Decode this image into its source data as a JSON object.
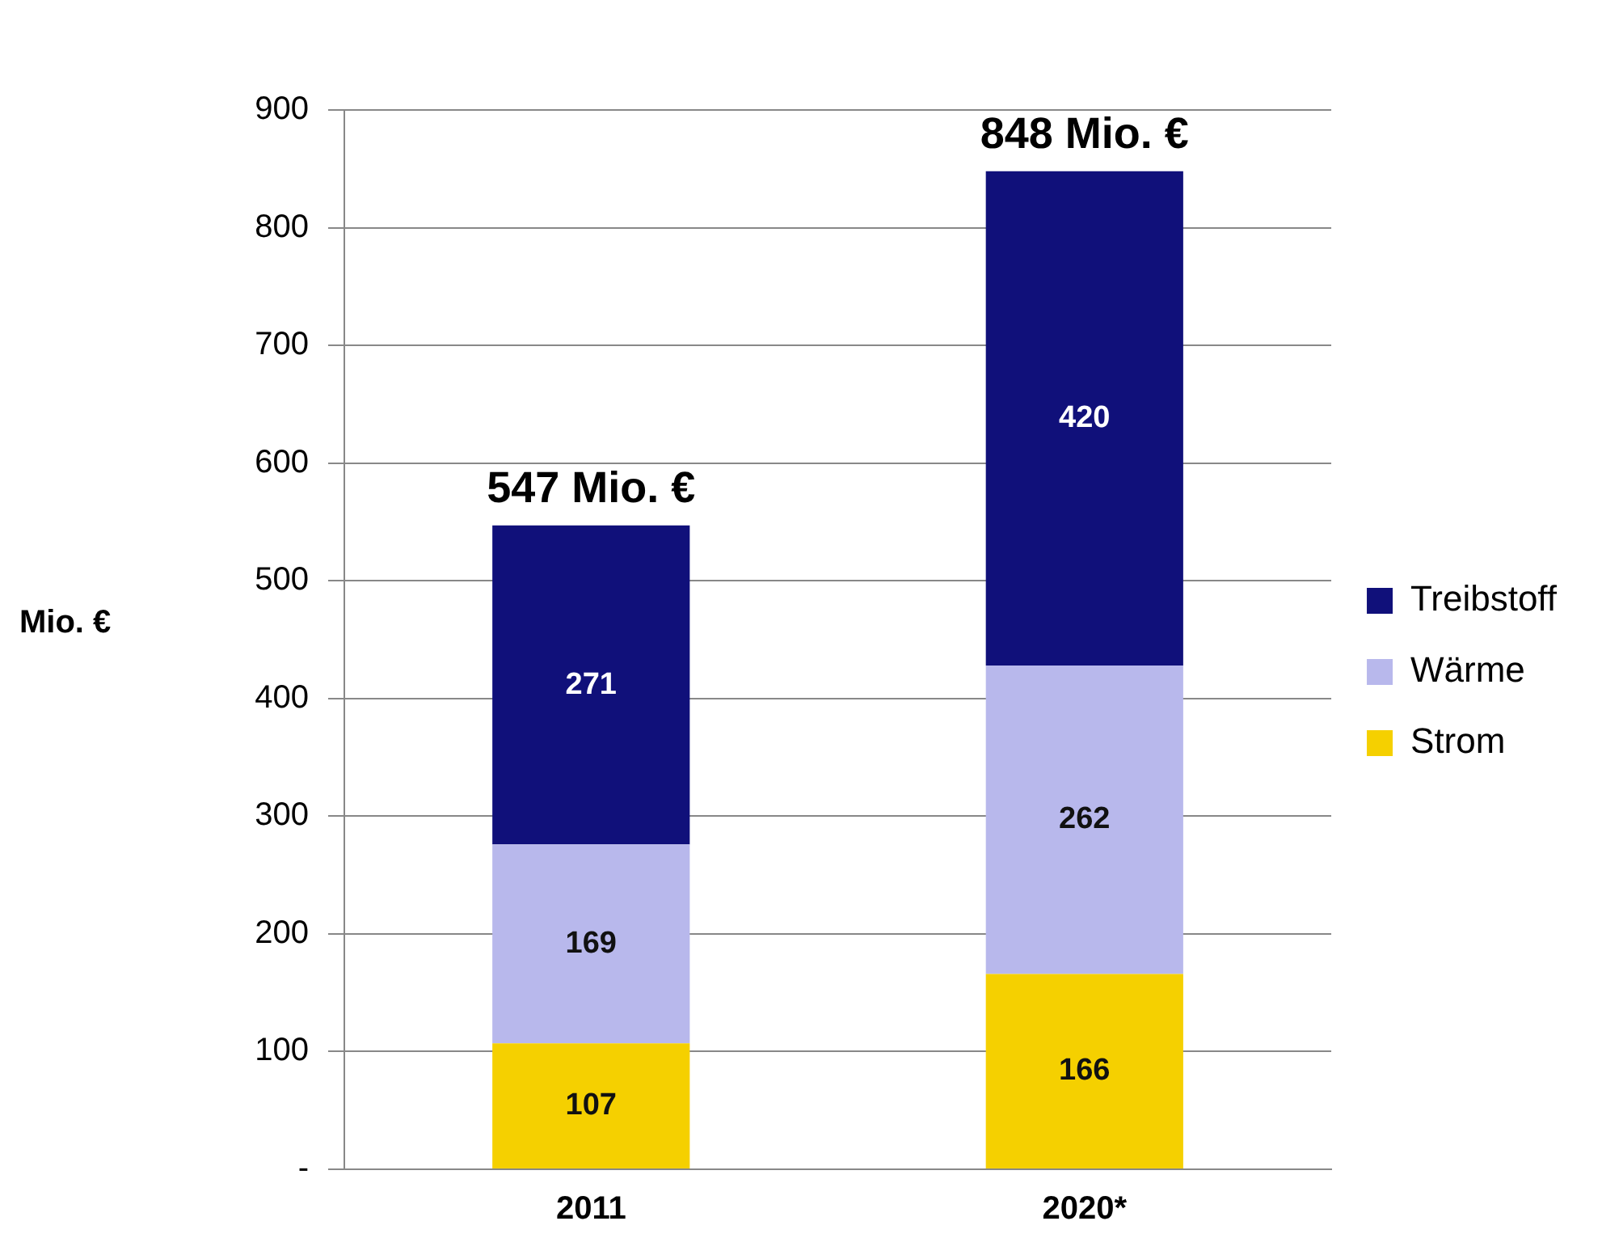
{
  "chart_data": {
    "type": "bar",
    "stacked": true,
    "categories": [
      "2011",
      "2020*"
    ],
    "series": [
      {
        "name": "Strom",
        "color": "#f5d000",
        "values": [
          107,
          166
        ]
      },
      {
        "name": "Wärme",
        "color": "#b8b8ec",
        "values": [
          169,
          262
        ]
      },
      {
        "name": "Treibstoff",
        "color": "#10107a",
        "values": [
          271,
          420
        ]
      }
    ],
    "ylabel": "Mio. €",
    "ylim": [
      0,
      900
    ],
    "yticks": [
      {
        "value": 0,
        "label": "-"
      },
      100,
      200,
      300,
      400,
      500,
      600,
      700,
      800,
      900
    ],
    "totals": [
      "547 Mio. €",
      "848 Mio. €"
    ],
    "data_labels": true,
    "grid": "y",
    "legend": "right"
  }
}
